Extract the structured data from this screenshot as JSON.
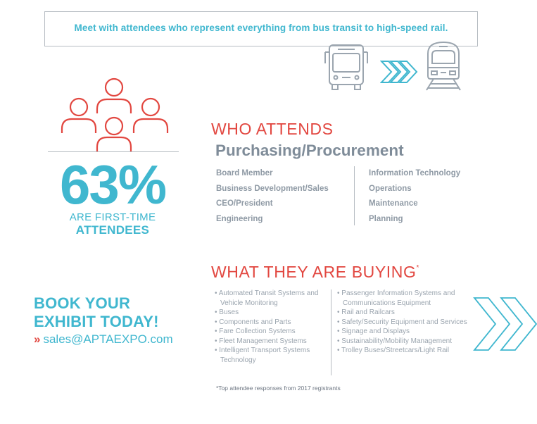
{
  "banner": {
    "text": "Meet with attendees who represent everything from bus transit to high-speed rail."
  },
  "icons": {
    "bus": "bus-icon",
    "arrows": "triple-chevron-icon",
    "train": "train-icon",
    "people": "people-group-icon",
    "big_chevrons": "double-chevron-icon",
    "colors": {
      "blue": "#40b7cf",
      "red": "#e24740",
      "gray": "#8f9aa5",
      "line": "#b6bcc2"
    }
  },
  "stat": {
    "percent": "63%",
    "line1": "ARE FIRST-TIME",
    "line2": "ATTENDEES"
  },
  "who": {
    "heading": "WHO ATTENDS",
    "subheading": "Purchasing/Procurement",
    "col1": [
      "Board Member",
      "Business Development/Sales",
      "CEO/President",
      "Engineering"
    ],
    "col2": [
      "Information Technology",
      "Operations",
      "Maintenance",
      "Planning"
    ]
  },
  "buying": {
    "heading": "WHAT THEY ARE BUYING",
    "asterisk": "*",
    "col1": [
      "• Automated Transit Systems and Vehicle Monitoring",
      "• Buses",
      "• Components and Parts",
      "• Fare Collection Systems",
      "• Fleet Management Systems",
      "• Intelligent Transport Systems Technology"
    ],
    "col2": [
      "• Passenger Information Systems and Communications Equipment",
      "• Rail and Railcars",
      "• Safety/Security Equipment and Services",
      "• Signage and Displays",
      "• Sustainability/Mobility Management",
      "• Trolley Buses/Streetcars/Light Rail"
    ]
  },
  "footnote": "*Top attendee responses from 2017 registrants",
  "cta": {
    "line1": "BOOK YOUR",
    "line2": "EXHIBIT TODAY!",
    "chevron": "»",
    "email": "sales@APTAEXPO.com"
  }
}
